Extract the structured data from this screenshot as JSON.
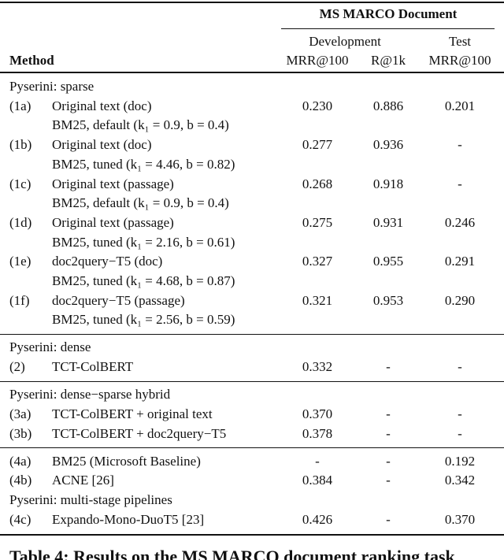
{
  "header": {
    "group": "MS MARCO Document",
    "development": "Development",
    "test": "Test",
    "columns": [
      "Method",
      "MRR@100",
      "R@1k",
      "MRR@100"
    ]
  },
  "groups": [
    {
      "rows": [
        {
          "heading": "Pyserini: sparse"
        },
        {
          "id": "(1a)",
          "method": [
            "Original text (doc)",
            "BM25, default (k₁ = 0.9, b = 0.4)"
          ],
          "values": [
            "0.230",
            "0.886",
            "0.201"
          ]
        },
        {
          "id": "(1b)",
          "method": [
            "Original text (doc)",
            "BM25, tuned (k₁ = 4.46, b = 0.82)"
          ],
          "values": [
            "0.277",
            "0.936",
            "-"
          ]
        },
        {
          "id": "(1c)",
          "method": [
            "Original text (passage)",
            "BM25, default (k₁ = 0.9, b = 0.4)"
          ],
          "values": [
            "0.268",
            "0.918",
            "-"
          ]
        },
        {
          "id": "(1d)",
          "method": [
            "Original text (passage)",
            "BM25, tuned (k₁ = 2.16, b = 0.61)"
          ],
          "values": [
            "0.275",
            "0.931",
            "0.246"
          ]
        },
        {
          "id": "(1e)",
          "method": [
            "doc2query−T5 (doc)",
            "BM25, tuned (k₁ = 4.68, b = 0.87)"
          ],
          "values": [
            "0.327",
            "0.955",
            "0.291"
          ]
        },
        {
          "id": "(1f)",
          "method": [
            "doc2query−T5 (passage)",
            "BM25, tuned (k₁ = 2.56, b = 0.59)"
          ],
          "values": [
            "0.321",
            "0.953",
            "0.290"
          ]
        }
      ]
    },
    {
      "rows": [
        {
          "heading": "Pyserini: dense"
        },
        {
          "id": "(2)",
          "method": [
            "TCT-ColBERT"
          ],
          "values": [
            "0.332",
            "-",
            "-"
          ]
        }
      ]
    },
    {
      "rows": [
        {
          "heading": "Pyserini: dense−sparse hybrid"
        },
        {
          "id": "(3a)",
          "method": [
            "TCT-ColBERT + original text"
          ],
          "values": [
            "0.370",
            "-",
            "-"
          ]
        },
        {
          "id": "(3b)",
          "method": [
            "TCT-ColBERT + doc2query−T5"
          ],
          "values": [
            "0.378",
            "-",
            "-"
          ]
        }
      ]
    },
    {
      "rows": [
        {
          "id": "(4a)",
          "method": [
            "BM25 (Microsoft Baseline)"
          ],
          "values": [
            "-",
            "-",
            "0.192"
          ]
        },
        {
          "id": "(4b)",
          "method": [
            "ACNE [26]"
          ],
          "values": [
            "0.384",
            "-",
            "0.342"
          ]
        },
        {
          "heading": "Pyserini: multi-stage pipelines"
        },
        {
          "id": "(4c)",
          "method": [
            "Expando-Mono-DuoT5 [23]"
          ],
          "values": [
            "0.426",
            "-",
            "0.370"
          ]
        }
      ]
    }
  ],
  "caption": "Table 4: Results on the MS MARCO document ranking task"
}
